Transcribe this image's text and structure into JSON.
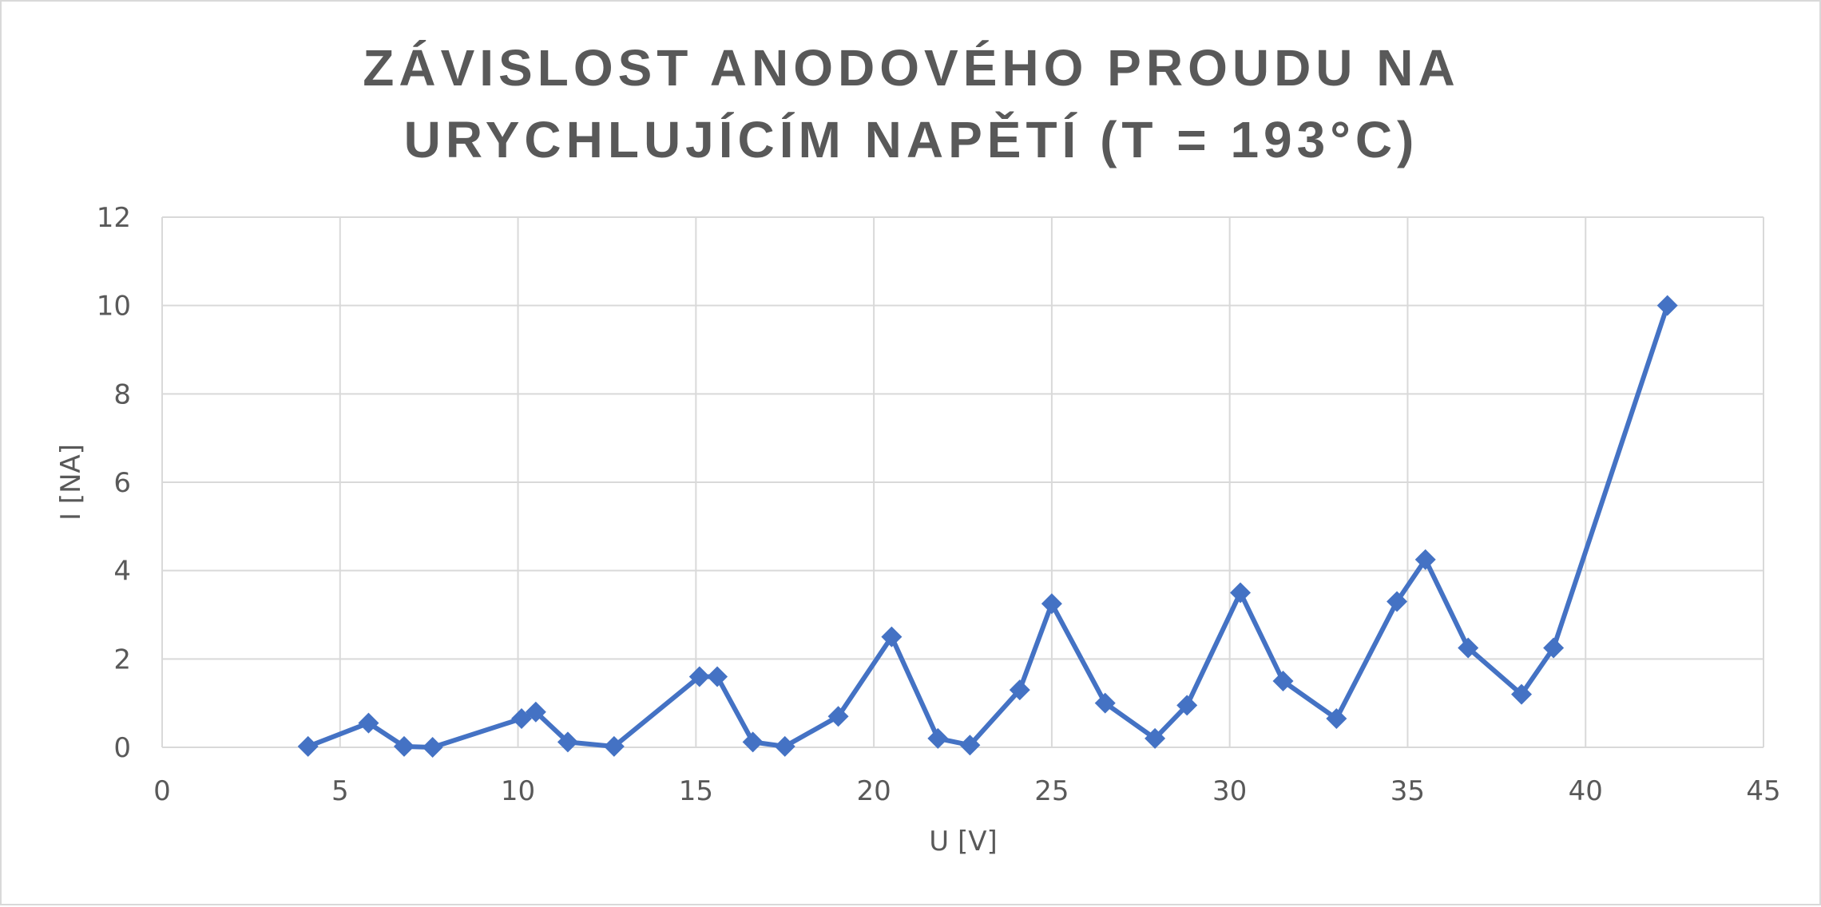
{
  "chart_data": {
    "type": "scatter",
    "title_lines": [
      "ZÁVISLOST ANODOVÉHO PROUDU NA",
      "URYCHLUJÍCÍM NAPĚTÍ (T = 193°C)"
    ],
    "xlabel": "U [V]",
    "ylabel": "I [NA]",
    "xlim": [
      0,
      45
    ],
    "ylim": [
      0,
      12
    ],
    "x_ticks": [
      0,
      5,
      10,
      15,
      20,
      25,
      30,
      35,
      40,
      45
    ],
    "y_ticks": [
      0,
      2,
      4,
      6,
      8,
      10,
      12
    ],
    "grid": true,
    "legend": "none",
    "line_style": "lines-with-markers",
    "marker": "diamond",
    "series": [
      {
        "color": "#4472c4",
        "points": [
          {
            "x": 4.1,
            "y": 0.02
          },
          {
            "x": 5.8,
            "y": 0.55
          },
          {
            "x": 6.8,
            "y": 0.02
          },
          {
            "x": 7.6,
            "y": 0.0
          },
          {
            "x": 10.1,
            "y": 0.65
          },
          {
            "x": 10.5,
            "y": 0.8
          },
          {
            "x": 11.4,
            "y": 0.12
          },
          {
            "x": 12.7,
            "y": 0.02
          },
          {
            "x": 15.1,
            "y": 1.6
          },
          {
            "x": 15.6,
            "y": 1.6
          },
          {
            "x": 16.6,
            "y": 0.12
          },
          {
            "x": 17.5,
            "y": 0.02
          },
          {
            "x": 19.0,
            "y": 0.7
          },
          {
            "x": 20.5,
            "y": 2.5
          },
          {
            "x": 21.8,
            "y": 0.2
          },
          {
            "x": 22.7,
            "y": 0.05
          },
          {
            "x": 24.1,
            "y": 1.3
          },
          {
            "x": 25.0,
            "y": 3.25
          },
          {
            "x": 26.5,
            "y": 1.0
          },
          {
            "x": 27.9,
            "y": 0.2
          },
          {
            "x": 28.8,
            "y": 0.95
          },
          {
            "x": 30.3,
            "y": 3.5
          },
          {
            "x": 31.5,
            "y": 1.5
          },
          {
            "x": 33.0,
            "y": 0.65
          },
          {
            "x": 34.7,
            "y": 3.3
          },
          {
            "x": 35.5,
            "y": 4.25
          },
          {
            "x": 36.7,
            "y": 2.25
          },
          {
            "x": 38.2,
            "y": 1.2
          },
          {
            "x": 39.1,
            "y": 2.25
          },
          {
            "x": 42.3,
            "y": 10.0
          }
        ]
      }
    ]
  }
}
